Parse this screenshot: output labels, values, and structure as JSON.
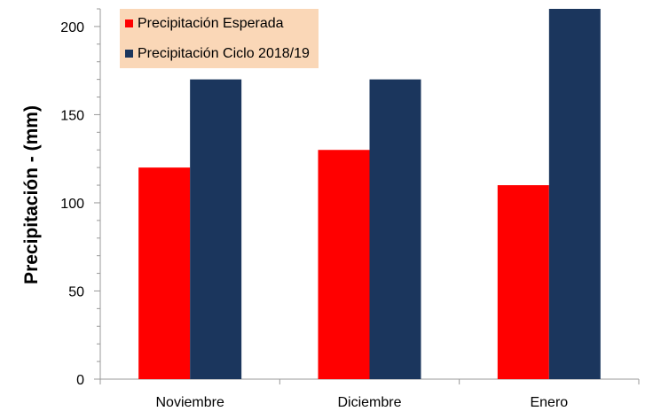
{
  "chart_data": {
    "type": "bar",
    "title": "",
    "xlabel": "",
    "ylabel": "Precipitación - (mm)",
    "categories": [
      "Noviembre",
      "Diciembre",
      "Enero"
    ],
    "series": [
      {
        "name": "Precipitación Esperada",
        "values": [
          120,
          130,
          110
        ],
        "color": "#ff0000"
      },
      {
        "name": "Precipitación Ciclo 2018/19",
        "values": [
          170,
          170,
          210
        ],
        "color": "#1b365d"
      }
    ],
    "ylim": [
      0,
      210
    ],
    "yticks": [
      0,
      50,
      100,
      150,
      200
    ],
    "yminor_step": 10,
    "grid": false,
    "legend_placement": "top-left",
    "legend_bg": "#fad7b7"
  }
}
